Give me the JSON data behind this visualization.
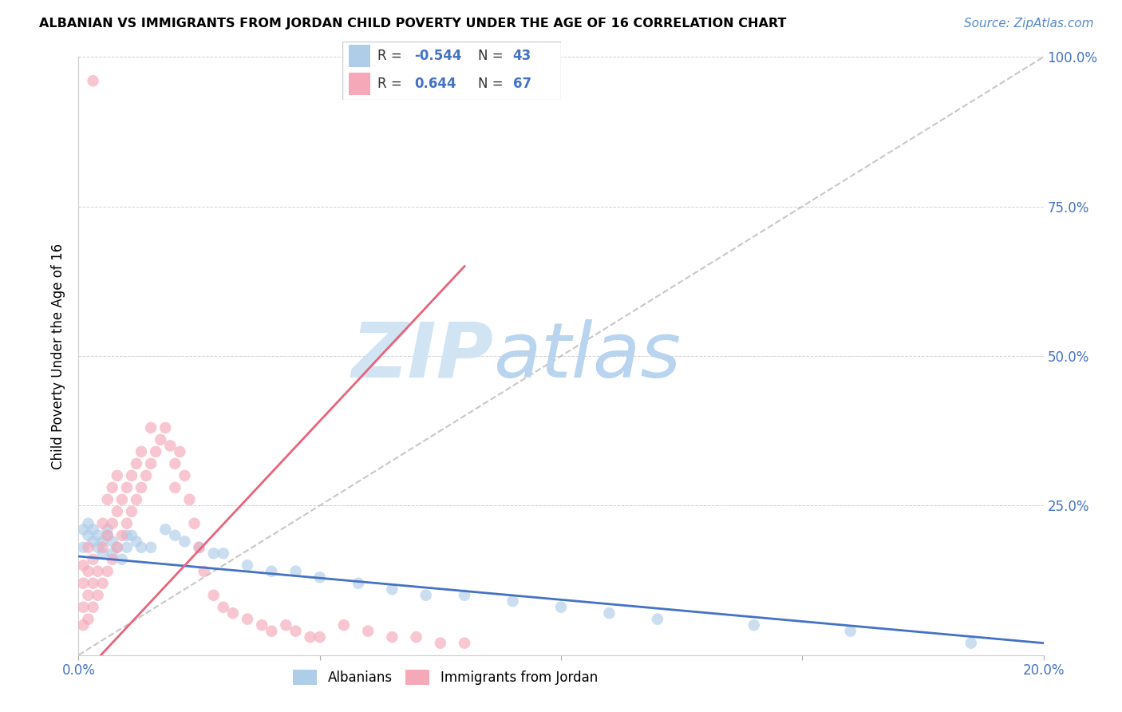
{
  "title": "ALBANIAN VS IMMIGRANTS FROM JORDAN CHILD POVERTY UNDER THE AGE OF 16 CORRELATION CHART",
  "source": "Source: ZipAtlas.com",
  "ylabel": "Child Poverty Under the Age of 16",
  "xlim": [
    0.0,
    0.2
  ],
  "ylim": [
    0.0,
    1.0
  ],
  "albanian_R": -0.544,
  "albanian_N": 43,
  "jordan_R": 0.644,
  "jordan_N": 67,
  "albanian_color": "#aecde8",
  "jordan_color": "#f4a8b8",
  "albanian_line_color": "#4472c4",
  "jordan_line_color": "#e8637a",
  "legend_label_albanian": "Albanians",
  "legend_label_jordan": "Immigrants from Jordan",
  "watermark": "ZIPatlas",
  "watermark_color": "#ccdff5",
  "alb_x": [
    0.001,
    0.001,
    0.002,
    0.002,
    0.003,
    0.003,
    0.004,
    0.004,
    0.005,
    0.005,
    0.006,
    0.006,
    0.007,
    0.007,
    0.008,
    0.009,
    0.01,
    0.01,
    0.011,
    0.012,
    0.013,
    0.015,
    0.018,
    0.02,
    0.022,
    0.025,
    0.028,
    0.03,
    0.035,
    0.04,
    0.045,
    0.05,
    0.058,
    0.065,
    0.072,
    0.08,
    0.09,
    0.1,
    0.11,
    0.12,
    0.14,
    0.16,
    0.185
  ],
  "alb_y": [
    0.18,
    0.21,
    0.2,
    0.22,
    0.19,
    0.21,
    0.18,
    0.2,
    0.17,
    0.19,
    0.21,
    0.2,
    0.19,
    0.17,
    0.18,
    0.16,
    0.18,
    0.2,
    0.2,
    0.19,
    0.18,
    0.18,
    0.21,
    0.2,
    0.19,
    0.18,
    0.17,
    0.17,
    0.15,
    0.14,
    0.14,
    0.13,
    0.12,
    0.11,
    0.1,
    0.1,
    0.09,
    0.08,
    0.07,
    0.06,
    0.05,
    0.04,
    0.02
  ],
  "jor_x": [
    0.001,
    0.001,
    0.001,
    0.001,
    0.002,
    0.002,
    0.002,
    0.002,
    0.003,
    0.003,
    0.003,
    0.004,
    0.004,
    0.005,
    0.005,
    0.005,
    0.006,
    0.006,
    0.006,
    0.007,
    0.007,
    0.007,
    0.008,
    0.008,
    0.008,
    0.009,
    0.009,
    0.01,
    0.01,
    0.011,
    0.011,
    0.012,
    0.012,
    0.013,
    0.013,
    0.014,
    0.015,
    0.015,
    0.016,
    0.017,
    0.018,
    0.019,
    0.02,
    0.02,
    0.021,
    0.022,
    0.023,
    0.024,
    0.025,
    0.026,
    0.028,
    0.03,
    0.032,
    0.035,
    0.038,
    0.04,
    0.043,
    0.045,
    0.048,
    0.05,
    0.055,
    0.06,
    0.065,
    0.07,
    0.075,
    0.08,
    0.003
  ],
  "jor_y": [
    0.05,
    0.08,
    0.12,
    0.15,
    0.06,
    0.1,
    0.14,
    0.18,
    0.08,
    0.12,
    0.16,
    0.1,
    0.14,
    0.12,
    0.18,
    0.22,
    0.14,
    0.2,
    0.26,
    0.16,
    0.22,
    0.28,
    0.18,
    0.24,
    0.3,
    0.2,
    0.26,
    0.22,
    0.28,
    0.24,
    0.3,
    0.26,
    0.32,
    0.28,
    0.34,
    0.3,
    0.32,
    0.38,
    0.34,
    0.36,
    0.38,
    0.35,
    0.32,
    0.28,
    0.34,
    0.3,
    0.26,
    0.22,
    0.18,
    0.14,
    0.1,
    0.08,
    0.07,
    0.06,
    0.05,
    0.04,
    0.05,
    0.04,
    0.03,
    0.03,
    0.05,
    0.04,
    0.03,
    0.03,
    0.02,
    0.02,
    0.96
  ]
}
